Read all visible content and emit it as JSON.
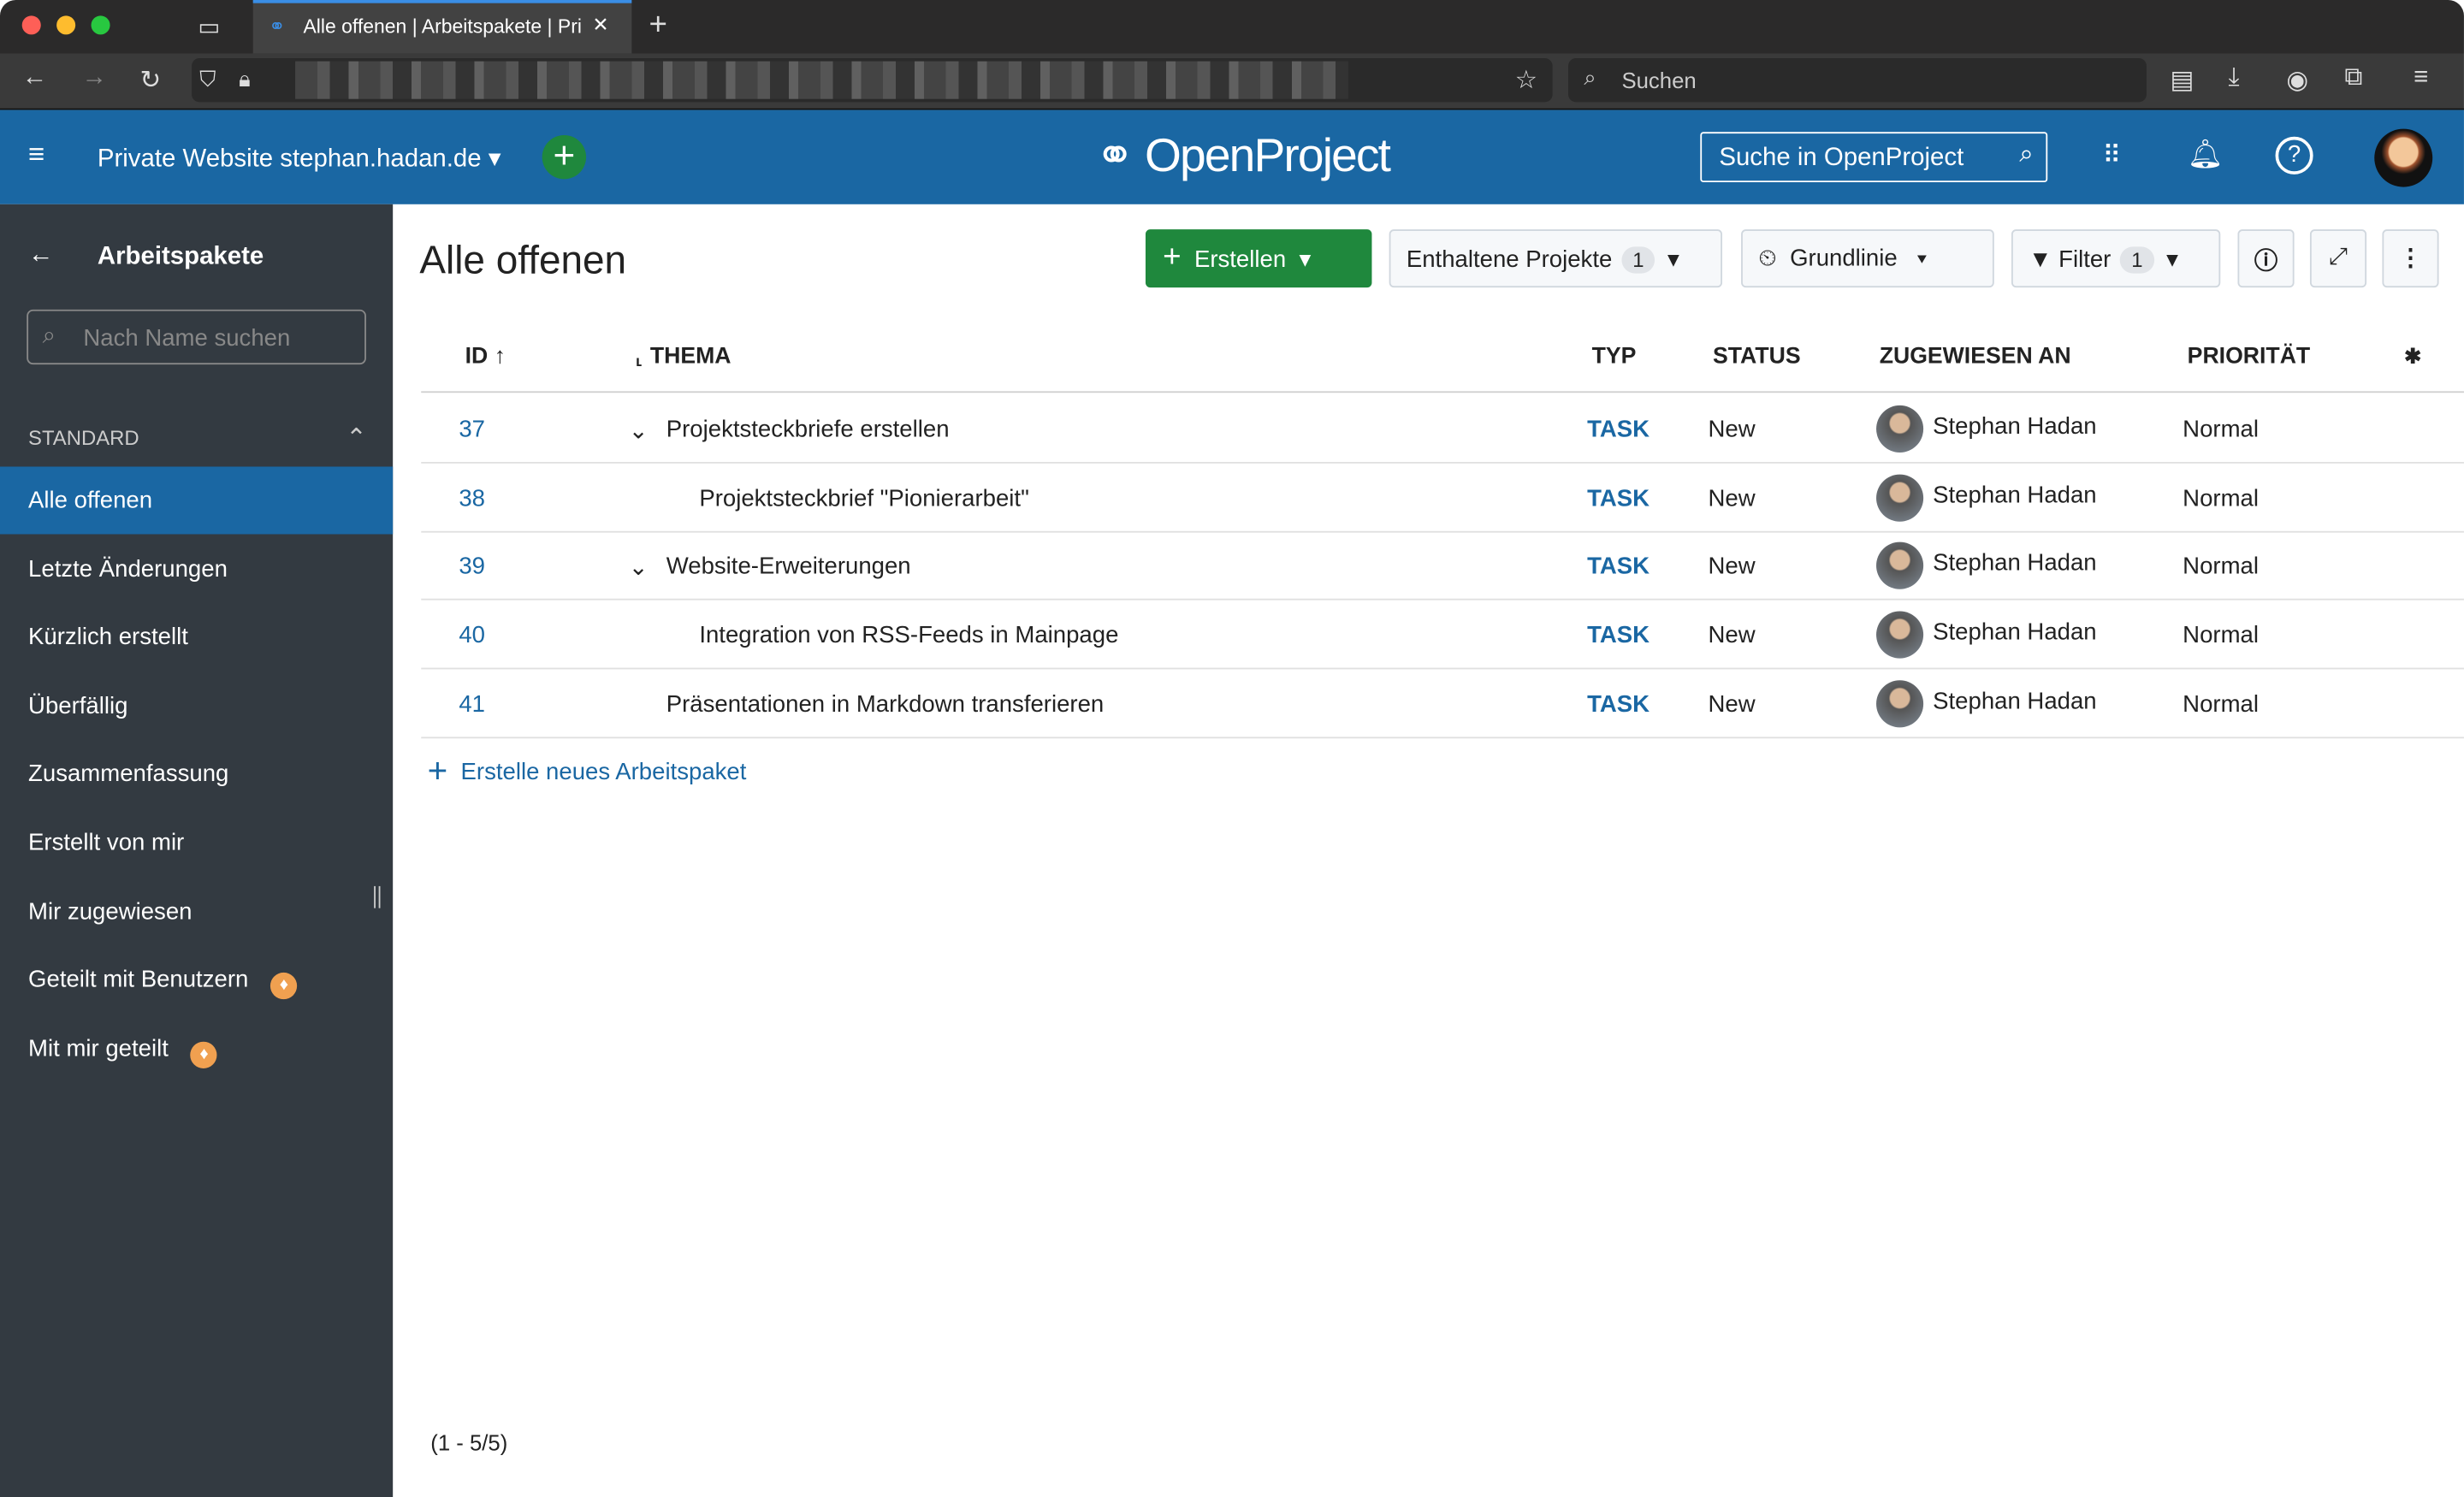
{
  "browser": {
    "tab_title": "Alle offenen | Arbeitspakete | Pri",
    "search_placeholder": "Suchen"
  },
  "header": {
    "project": "Private Website stephan.hadan.de",
    "logo": "OpenProject",
    "search": "Suche in OpenProject"
  },
  "sidebar": {
    "title": "Arbeitspakete",
    "search_placeholder": "Nach Name suchen",
    "section": "STANDARD",
    "items": [
      {
        "label": "Alle offenen",
        "active": true
      },
      {
        "label": "Letzte Änderungen"
      },
      {
        "label": "Kürzlich erstellt"
      },
      {
        "label": "Überfällig"
      },
      {
        "label": "Zusammenfassung"
      },
      {
        "label": "Erstellt von mir"
      },
      {
        "label": "Mir zugewiesen"
      },
      {
        "label": "Geteilt mit Benutzern",
        "icon": "enterprise-badge-icon"
      },
      {
        "label": "Mit mir geteilt",
        "icon": "enterprise-badge-icon"
      }
    ]
  },
  "main": {
    "title": "Alle offenen",
    "create": "Erstellen",
    "projects": "Enthaltene Projekte",
    "projects_count": "1",
    "baseline": "Grundlinie",
    "filter": "Filter",
    "filter_count": "1",
    "columns": {
      "id": "ID",
      "subject": "THEMA",
      "type": "TYP",
      "status": "STATUS",
      "assignee": "ZUGEWIESEN AN",
      "priority": "PRIORITÄT"
    },
    "rows": [
      {
        "id": "37",
        "subject": "Projektsteckbriefe erstellen",
        "type": "TASK",
        "status": "New",
        "assignee": "Stephan Hadan",
        "priority": "Normal",
        "expandable": true,
        "indent": 0
      },
      {
        "id": "38",
        "subject": "Projektsteckbrief \"Pionierarbeit\"",
        "type": "TASK",
        "status": "New",
        "assignee": "Stephan Hadan",
        "priority": "Normal",
        "indent": 1
      },
      {
        "id": "39",
        "subject": "Website-Erweiterungen",
        "type": "TASK",
        "status": "New",
        "assignee": "Stephan Hadan",
        "priority": "Normal",
        "expandable": true,
        "indent": 0
      },
      {
        "id": "40",
        "subject": "Integration von RSS-Feeds in Mainpage",
        "type": "TASK",
        "status": "New",
        "assignee": "Stephan Hadan",
        "priority": "Normal",
        "indent": 1
      },
      {
        "id": "41",
        "subject": "Präsentationen in Markdown transferieren",
        "type": "TASK",
        "status": "New",
        "assignee": "Stephan Hadan",
        "priority": "Normal",
        "indent": 0
      }
    ],
    "add_row": "Erstelle neues Arbeitspaket",
    "pagination": "(1 - 5/5)"
  },
  "colors": {
    "header": "#1a67a3",
    "sidebar": "#333a41",
    "accent_green": "#1f883d",
    "link": "#1a67a3"
  }
}
